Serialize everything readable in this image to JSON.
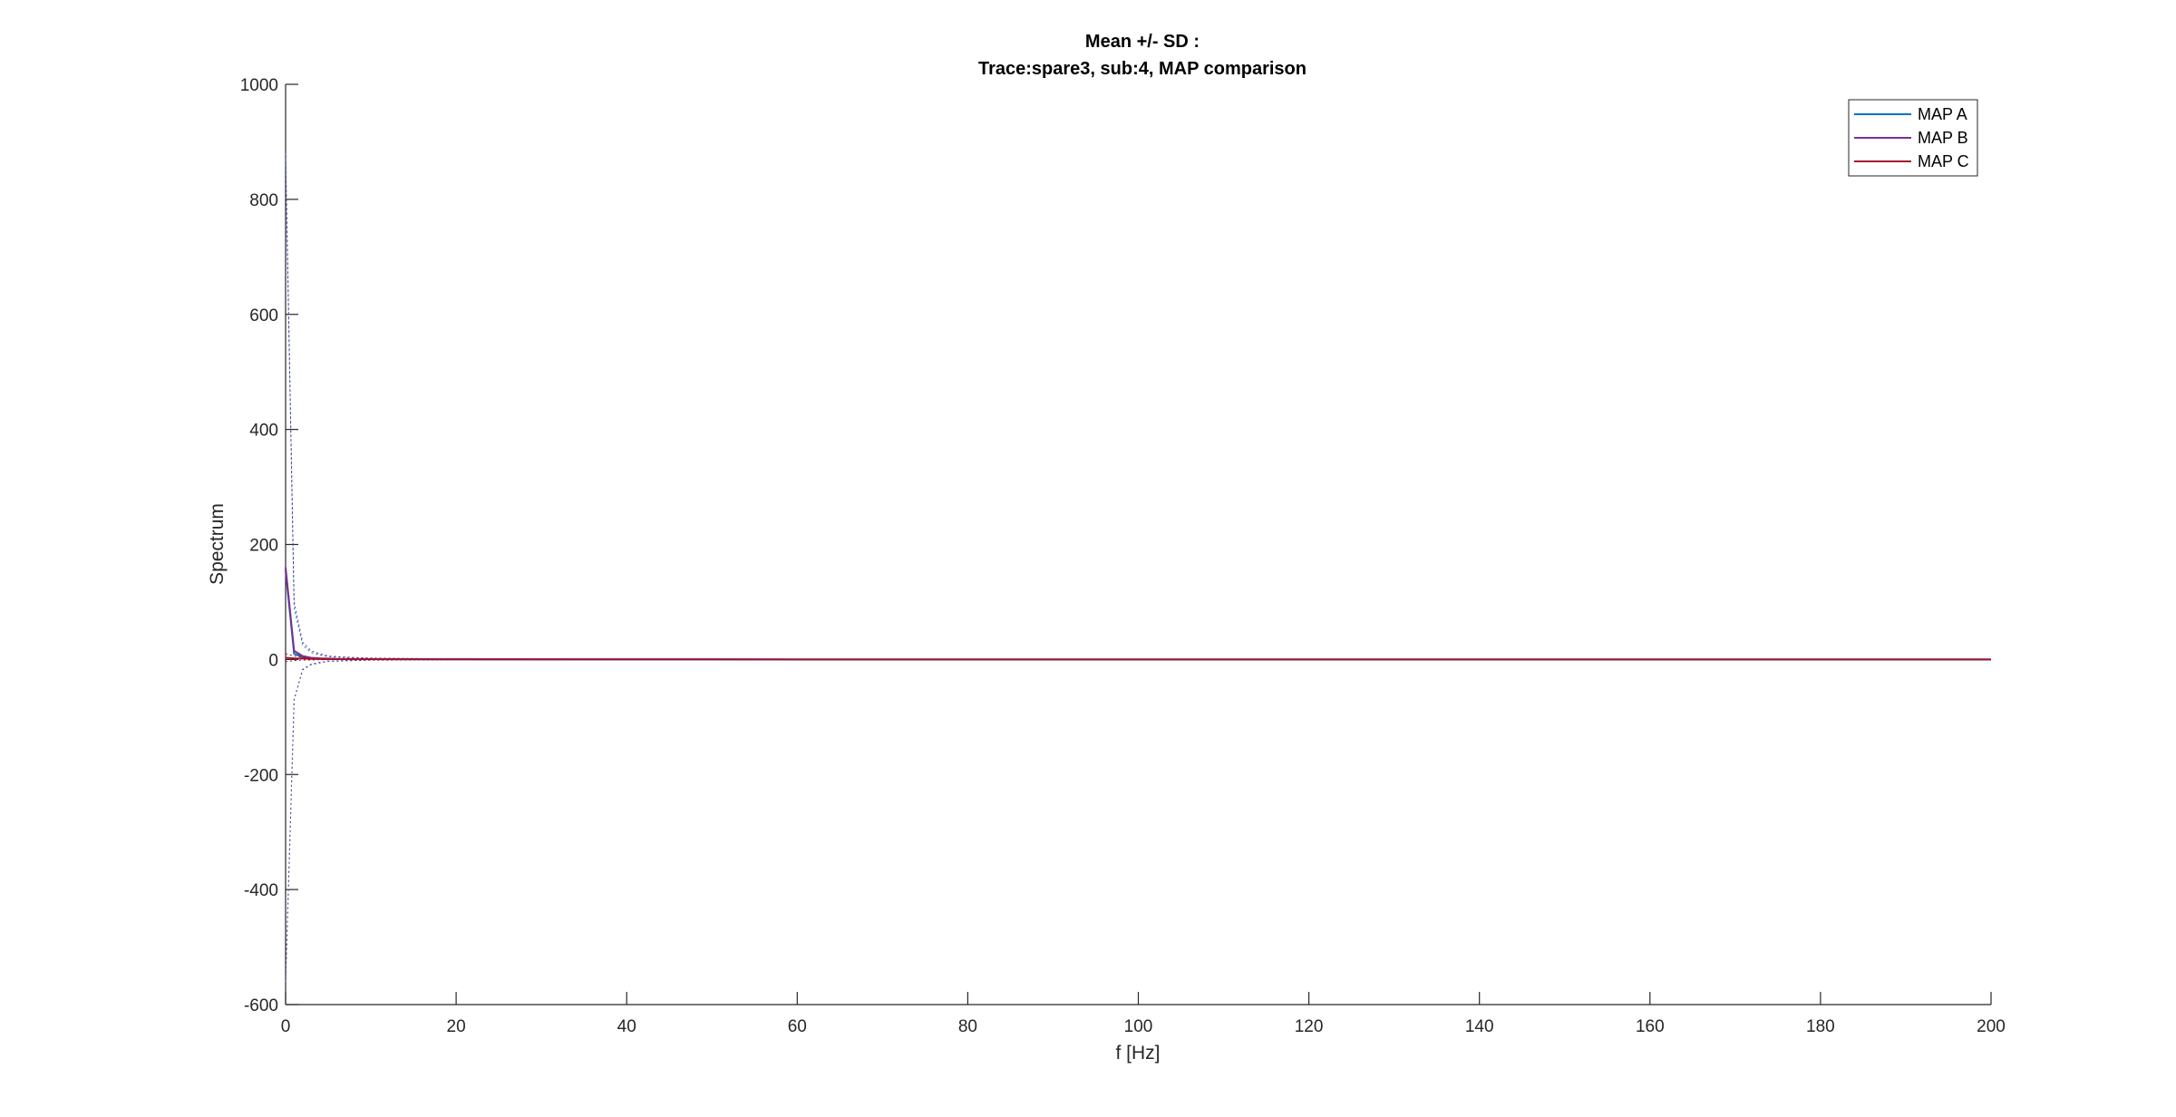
{
  "chart_data": {
    "type": "line",
    "title_line1": "Mean +/- SD :",
    "title_line2": "Trace:spare3, sub:4, MAP comparison",
    "xlabel": "f [Hz]",
    "ylabel": "Spectrum",
    "xlim": [
      0,
      200
    ],
    "ylim": [
      -600,
      1000
    ],
    "xticks": [
      0,
      20,
      40,
      60,
      80,
      100,
      120,
      140,
      160,
      180,
      200
    ],
    "yticks": [
      -600,
      -400,
      -200,
      0,
      200,
      400,
      600,
      800,
      1000
    ],
    "grid": false,
    "legend_position": "top-right",
    "series": [
      {
        "name": "MAP A",
        "color": "#0072BD",
        "x": [
          0,
          1,
          2,
          3,
          4,
          5,
          6,
          8,
          10,
          20,
          50,
          100,
          200
        ],
        "mean": [
          155,
          10,
          4,
          2,
          1.5,
          1,
          0.8,
          0.6,
          0.5,
          0.3,
          0.1,
          0.05,
          0.02
        ],
        "upper": [
          870,
          90,
          25,
          12,
          8,
          5,
          4,
          3,
          2,
          1,
          0.5,
          0.3,
          0.1
        ],
        "lower": [
          -560,
          -70,
          -17,
          -8,
          -5,
          -3,
          -2.4,
          -1.8,
          -1,
          -0.4,
          -0.3,
          -0.2,
          -0.06
        ]
      },
      {
        "name": "MAP B",
        "color": "#7E2F8E",
        "x": [
          0,
          1,
          2,
          3,
          4,
          5,
          6,
          8,
          10,
          20,
          50,
          100,
          200
        ],
        "mean": [
          160,
          15,
          6,
          3,
          2,
          1.5,
          1,
          0.8,
          0.6,
          0.3,
          0.1,
          0.05,
          0.02
        ],
        "upper": [
          880,
          100,
          30,
          15,
          10,
          6,
          5,
          3.5,
          2.5,
          1,
          0.5,
          0.3,
          0.1
        ],
        "lower": [
          -560,
          -70,
          -18,
          -9,
          -6,
          -3,
          -3,
          -1.9,
          -1.3,
          -0.4,
          -0.3,
          -0.2,
          -0.06
        ]
      },
      {
        "name": "MAP C",
        "color": "#A2142F",
        "x": [
          0,
          1,
          2,
          3,
          4,
          5,
          6,
          8,
          10,
          20,
          50,
          100,
          200
        ],
        "mean": [
          3,
          2,
          1.5,
          1,
          0.8,
          0.6,
          0.5,
          0.4,
          0.3,
          0.2,
          0.1,
          0.05,
          0.02
        ],
        "upper": [
          10,
          6,
          4,
          3,
          2,
          1.5,
          1.2,
          1,
          0.8,
          0.5,
          0.3,
          0.2,
          0.1
        ],
        "lower": [
          -4,
          -2,
          -1,
          -1,
          -0.4,
          -0.3,
          -0.2,
          -0.2,
          -0.2,
          -0.1,
          -0.1,
          -0.1,
          -0.06
        ]
      }
    ]
  }
}
